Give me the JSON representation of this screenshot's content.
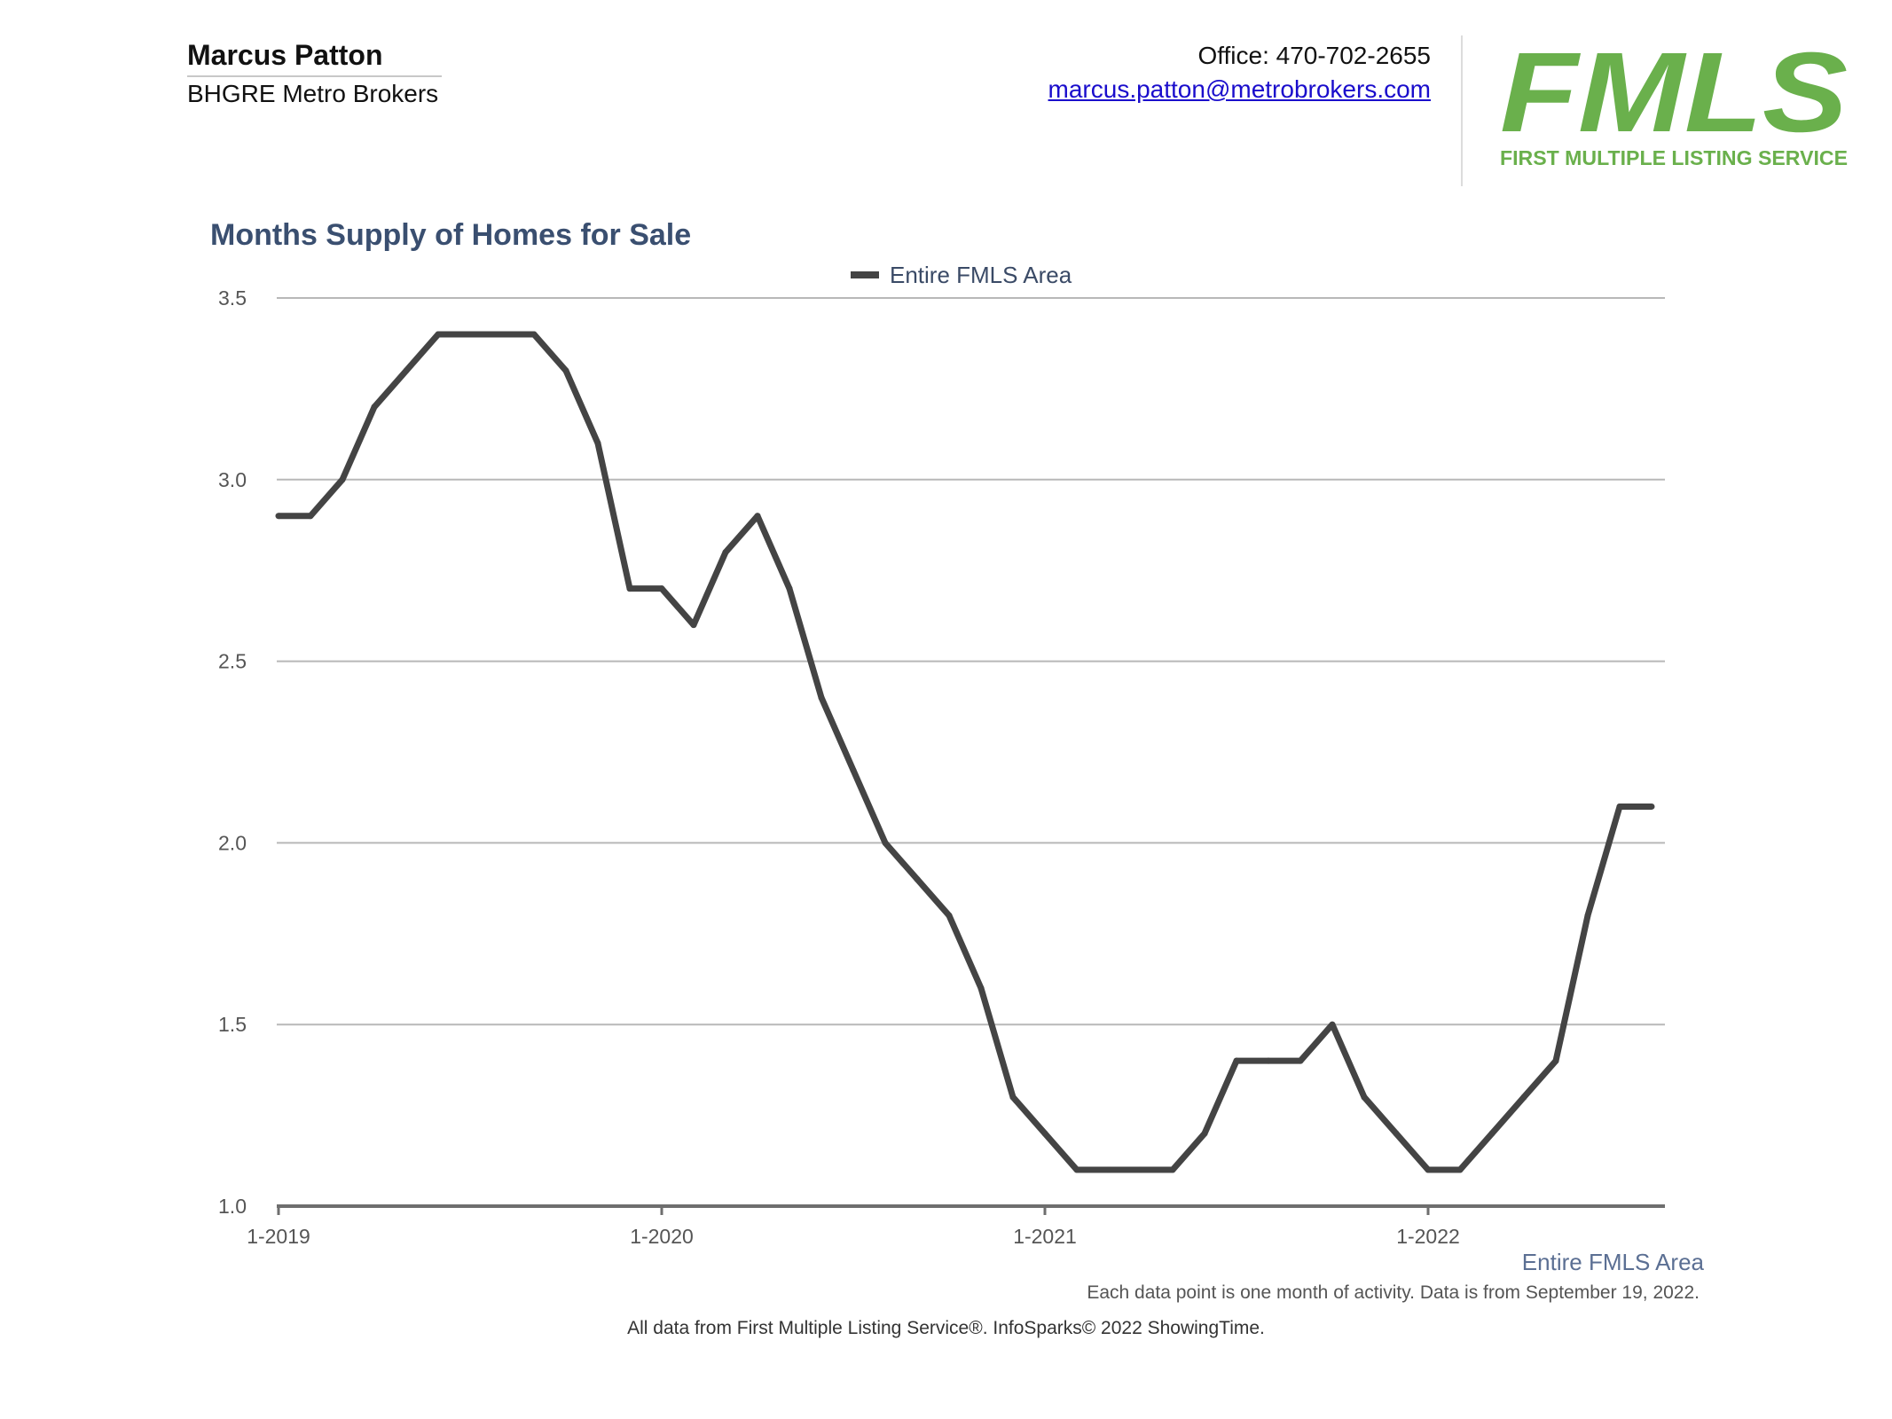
{
  "agent": {
    "name": "Marcus Patton",
    "company": "BHGRE Metro Brokers"
  },
  "contact": {
    "phone": "Office: 470-702-2655",
    "email": "marcus.patton@metrobrokers.com"
  },
  "logo": {
    "wordmark": "FMLS",
    "tagline": "FIRST MULTIPLE LISTING SERVICE",
    "color": "#6ab04c"
  },
  "chart_data": {
    "type": "line",
    "title": "Months Supply of Homes for Sale",
    "xlabel": "",
    "ylabel": "",
    "ylim": [
      1.0,
      3.5
    ],
    "yticks": [
      "1.0",
      "1.5",
      "2.0",
      "2.5",
      "3.0",
      "3.5"
    ],
    "xtick_labels": [
      "1-2019",
      "1-2020",
      "1-2021",
      "1-2022"
    ],
    "grid": true,
    "legend": "top-center",
    "line_color": "#444444",
    "series": [
      {
        "name": "Entire FMLS Area",
        "x": [
          "1-2019",
          "2-2019",
          "3-2019",
          "4-2019",
          "5-2019",
          "6-2019",
          "7-2019",
          "8-2019",
          "9-2019",
          "10-2019",
          "11-2019",
          "12-2019",
          "1-2020",
          "2-2020",
          "3-2020",
          "4-2020",
          "5-2020",
          "6-2020",
          "7-2020",
          "8-2020",
          "9-2020",
          "10-2020",
          "11-2020",
          "12-2020",
          "1-2021",
          "2-2021",
          "3-2021",
          "4-2021",
          "5-2021",
          "6-2021",
          "7-2021",
          "8-2021",
          "9-2021",
          "10-2021",
          "11-2021",
          "12-2021",
          "1-2022",
          "2-2022",
          "3-2022",
          "4-2022",
          "5-2022",
          "6-2022",
          "7-2022",
          "8-2022"
        ],
        "values": [
          2.9,
          2.9,
          3.0,
          3.2,
          3.3,
          3.4,
          3.4,
          3.4,
          3.4,
          3.3,
          3.1,
          2.7,
          2.7,
          2.6,
          2.8,
          2.9,
          2.7,
          2.4,
          2.2,
          2.0,
          1.9,
          1.8,
          1.6,
          1.3,
          1.2,
          1.1,
          1.1,
          1.1,
          1.1,
          1.2,
          1.4,
          1.4,
          1.4,
          1.5,
          1.3,
          1.2,
          1.1,
          1.1,
          1.2,
          1.3,
          1.4,
          1.8,
          2.1,
          2.1
        ]
      }
    ]
  },
  "bottom": {
    "area_label": "Entire FMLS Area",
    "note": "Each data point is one month of activity. Data is from September 19, 2022.",
    "footer": "All data from First Multiple Listing Service®. InfoSparks© 2022 ShowingTime."
  }
}
